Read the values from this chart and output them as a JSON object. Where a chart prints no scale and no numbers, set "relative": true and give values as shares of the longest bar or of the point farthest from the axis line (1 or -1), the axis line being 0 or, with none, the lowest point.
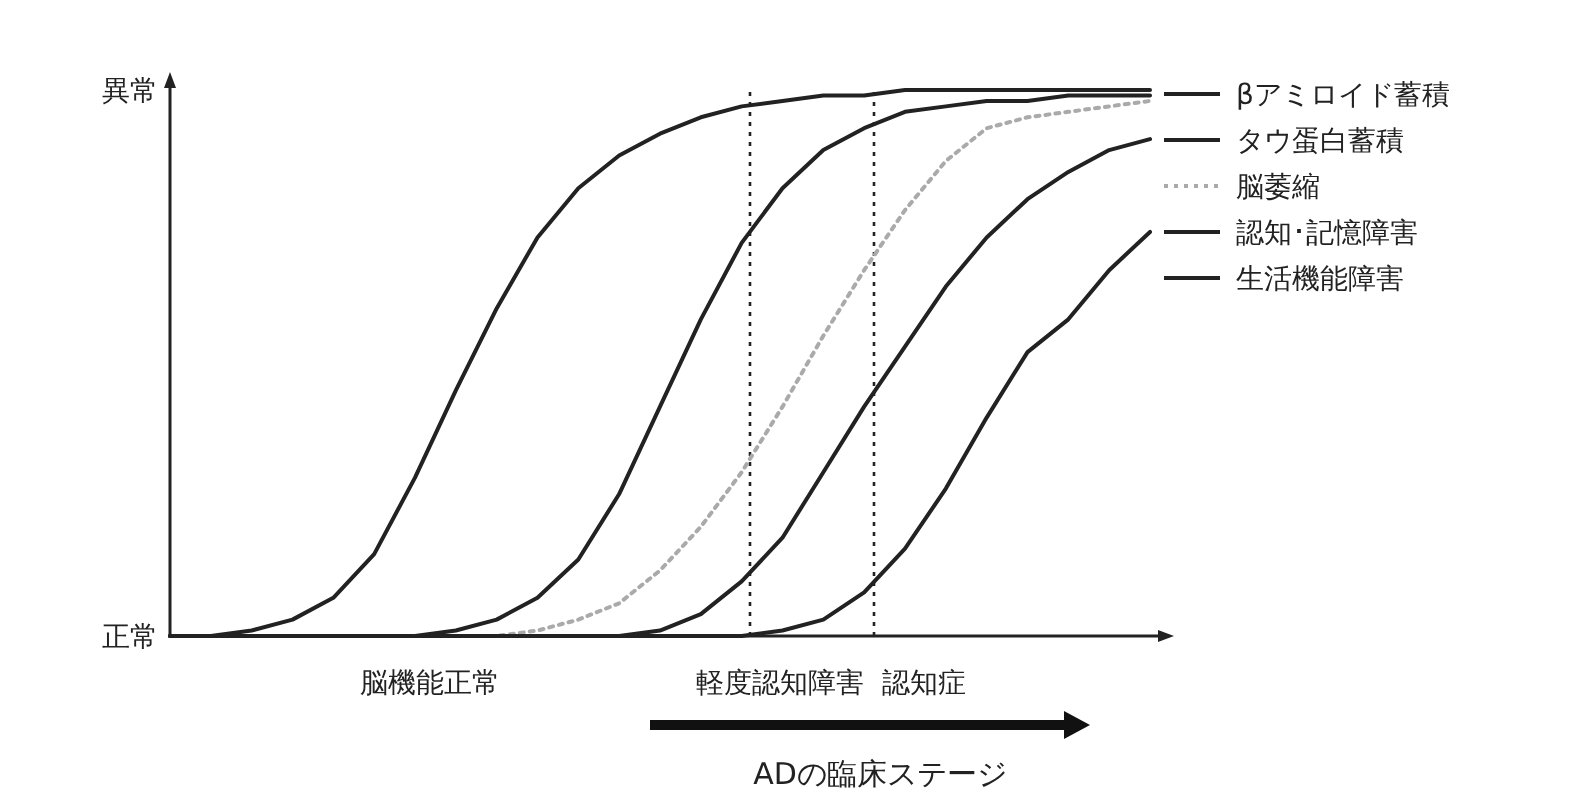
{
  "chart_data": {
    "type": "line",
    "relative": true,
    "legend": "right",
    "categories": [
      null,
      null,
      null,
      null,
      null,
      null,
      null,
      null,
      null,
      null,
      null,
      null,
      null,
      null,
      null,
      null,
      null,
      null,
      null,
      null,
      null,
      null,
      null,
      null,
      null
    ],
    "series": [
      {
        "name": "βアミロイド蓄積",
        "color": "#222222",
        "line_style": "solid",
        "values": [
          0,
          0,
          0.01,
          0.03,
          0.07,
          0.15,
          0.29,
          0.45,
          0.6,
          0.73,
          0.82,
          0.88,
          0.92,
          0.95,
          0.97,
          0.98,
          0.99,
          0.99,
          1,
          1,
          1,
          1,
          1,
          1,
          1
        ]
      },
      {
        "name": "タウ蛋白蓄積",
        "color": "#222222",
        "line_style": "solid",
        "values": [
          0,
          0,
          0,
          0,
          0,
          0,
          0,
          0.01,
          0.03,
          0.07,
          0.14,
          0.26,
          0.42,
          0.58,
          0.72,
          0.82,
          0.89,
          0.93,
          0.96,
          0.97,
          0.98,
          0.98,
          0.99,
          0.99,
          0.99
        ]
      },
      {
        "name": "脳萎縮",
        "color": "#aaaaaa",
        "line_style": "dotted",
        "values": [
          0,
          0,
          0,
          0,
          0,
          0,
          0,
          0,
          0,
          0.01,
          0.03,
          0.06,
          0.12,
          0.2,
          0.3,
          0.42,
          0.55,
          0.67,
          0.78,
          0.87,
          0.93,
          0.95,
          0.96,
          0.97,
          0.98
        ]
      },
      {
        "name": "認知･記憶障害",
        "color": "#222222",
        "line_style": "solid",
        "values": [
          0,
          0,
          0,
          0,
          0,
          0,
          0,
          0,
          0,
          0,
          0,
          0,
          0.01,
          0.04,
          0.1,
          0.18,
          0.3,
          0.42,
          0.53,
          0.64,
          0.73,
          0.8,
          0.85,
          0.89,
          0.91
        ]
      },
      {
        "name": "生活機能障害",
        "color": "#222222",
        "line_style": "solid",
        "values": [
          0,
          0,
          0,
          0,
          0,
          0,
          0,
          0,
          0,
          0,
          0,
          0,
          0,
          0,
          0,
          0.01,
          0.03,
          0.08,
          0.16,
          0.27,
          0.4,
          0.52,
          0.58,
          0.67,
          0.74
        ]
      }
    ],
    "annotations": [
      "異常",
      "正常",
      "脳機能正常",
      "軽度認知障害",
      "認知症",
      "ADの臨床ステージ"
    ]
  }
}
